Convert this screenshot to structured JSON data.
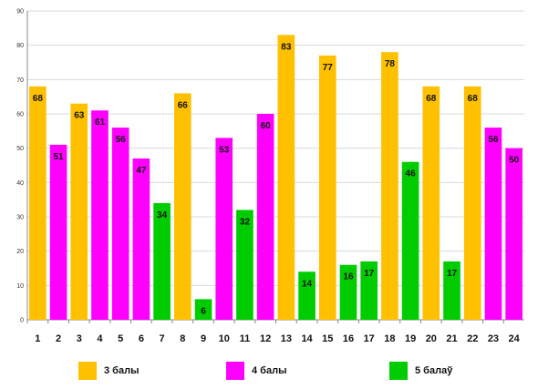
{
  "chart_data": {
    "type": "bar",
    "categories": [
      "1",
      "2",
      "3",
      "4",
      "5",
      "6",
      "7",
      "8",
      "9",
      "10",
      "11",
      "12",
      "13",
      "14",
      "15",
      "16",
      "17",
      "18",
      "19",
      "20",
      "21",
      "22",
      "23",
      "24"
    ],
    "values": [
      68,
      51,
      63,
      61,
      56,
      47,
      34,
      66,
      6,
      53,
      32,
      60,
      83,
      14,
      77,
      16,
      17,
      78,
      46,
      68,
      17,
      68,
      56,
      50
    ],
    "bar_group": [
      0,
      1,
      0,
      1,
      1,
      1,
      2,
      0,
      2,
      1,
      2,
      1,
      0,
      2,
      0,
      2,
      2,
      0,
      2,
      0,
      2,
      0,
      1,
      1
    ],
    "ylim": [
      0,
      90
    ],
    "yticks": [
      0,
      10,
      20,
      30,
      40,
      50,
      60,
      70,
      80,
      90
    ],
    "grid": true,
    "legend_position": "bottom",
    "series": [
      {
        "name": "3 балы",
        "color": "#FFC000"
      },
      {
        "name": "4 балы",
        "color": "#FF00FF"
      },
      {
        "name": "5 балаў",
        "color": "#00CC00"
      }
    ],
    "title": "",
    "xlabel": "",
    "ylabel": ""
  }
}
